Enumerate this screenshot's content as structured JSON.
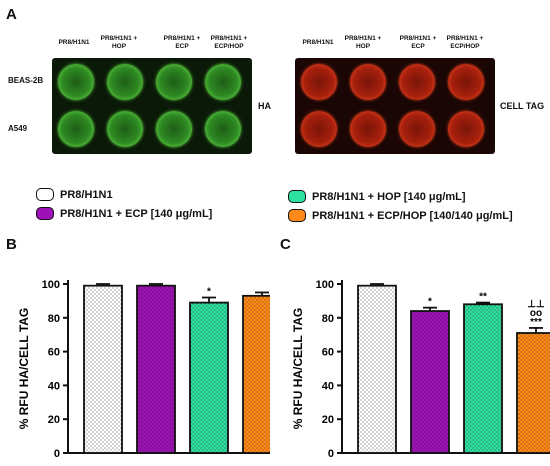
{
  "panel_a": {
    "letter": "A",
    "columns": [
      "PR8/H1N1",
      "PR8/H1N1 + HOP",
      "PR8/H1N1 + ECP",
      "PR8/H1N1 + ECP/HOP"
    ],
    "rows": [
      "BEAS-2B",
      "A549"
    ],
    "left_stain": "HA",
    "right_stain": "CELL TAG",
    "colors": {
      "left": "#2e8a22",
      "right": "#a6200c"
    }
  },
  "legend": [
    {
      "label": "PR8/H1N1",
      "color": "#ffffff",
      "pattern": "dots"
    },
    {
      "label": "PR8/H1N1 + HOP [140 μg/mL]",
      "color": "#2ee0a0",
      "pattern": "dots"
    },
    {
      "label": "PR8/H1N1 + ECP [140 μg/mL]",
      "color": "#a010b8",
      "pattern": "dots"
    },
    {
      "label": "PR8/H1N1 + ECP/HOP [140/140 μg/mL]",
      "color": "#ff8a18",
      "pattern": "dots"
    }
  ],
  "chart_data": [
    {
      "panel": "B",
      "type": "bar",
      "categories": [
        "PR8/H1N1",
        "PR8/H1N1 + ECP",
        "PR8/H1N1 + HOP",
        "PR8/H1N1 + ECP/HOP"
      ],
      "values": [
        99,
        99,
        89,
        93
      ],
      "errors": [
        1,
        1,
        3,
        2
      ],
      "annotations": [
        "",
        "",
        "*",
        ""
      ],
      "ylabel": "% RFU HA/CELL TAG",
      "ylim": [
        0,
        100
      ],
      "yticks": [
        "0",
        "20",
        "40",
        "60",
        "80",
        "100"
      ],
      "colors": [
        "#ffffff",
        "#a010b8",
        "#2ee0a0",
        "#ff8a18"
      ]
    },
    {
      "panel": "C",
      "type": "bar",
      "categories": [
        "PR8/H1N1",
        "PR8/H1N1 + ECP",
        "PR8/H1N1 + HOP",
        "PR8/H1N1 + ECP/HOP"
      ],
      "values": [
        99,
        84,
        88,
        71
      ],
      "errors": [
        1,
        2,
        1,
        3
      ],
      "annotations": [
        "",
        "*",
        "**",
        "⊥⊥\noo\n***"
      ],
      "ylabel": "% RFU HA/CELL TAG",
      "ylim": [
        0,
        100
      ],
      "yticks": [
        "0",
        "20",
        "40",
        "60",
        "80",
        "100"
      ],
      "colors": [
        "#ffffff",
        "#a010b8",
        "#2ee0a0",
        "#ff8a18"
      ]
    }
  ]
}
